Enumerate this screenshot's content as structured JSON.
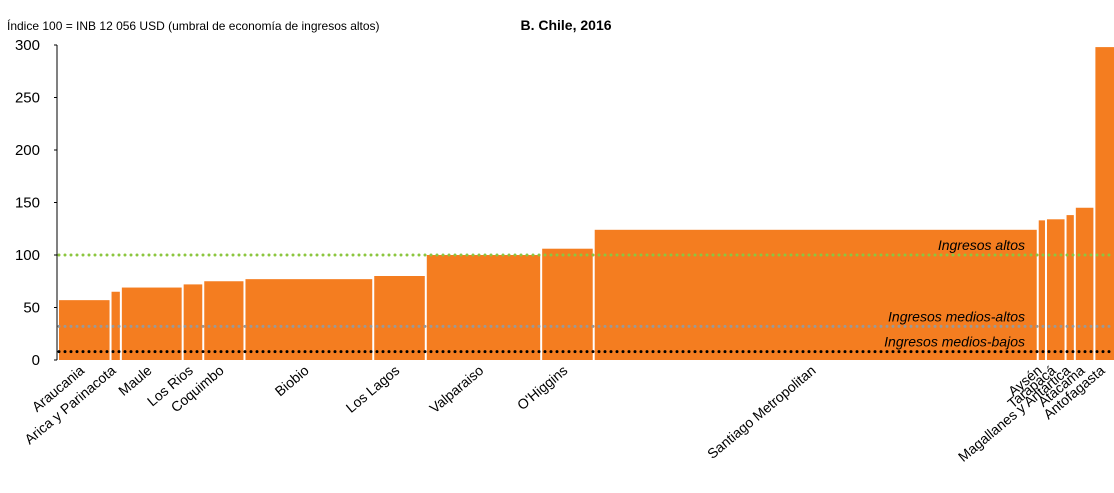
{
  "chart_data": {
    "type": "bar",
    "title": "B. Chile, 2016",
    "subtitle": "Índice 100 = INB 12 056 USD (umbral de economía de ingresos altos)",
    "categories": [
      "Araucania",
      "Arica y Parinacota",
      "Maule",
      "Los Rios",
      "Coquimbo",
      "Biobio",
      "Los Lagos",
      "Valparaiso",
      "O'Higgins",
      "Santiago Metropolitan",
      "Aysén",
      "Tarapacá",
      "Magallanes y Antártica",
      "Atacama",
      "Antofagasta"
    ],
    "values": [
      57,
      65,
      69,
      72,
      75,
      77,
      80,
      100,
      106,
      124,
      133,
      134,
      138,
      145,
      298
    ],
    "widths": [
      51,
      10,
      60,
      20,
      40,
      125,
      51,
      112,
      51,
      431,
      8,
      19,
      9,
      19,
      20
    ],
    "color": "#f47d20",
    "ylim": [
      0,
      300
    ],
    "yticks": [
      0,
      50,
      100,
      150,
      200,
      250,
      300
    ],
    "reference_lines": [
      {
        "label": "Ingresos altos",
        "value": 100,
        "color": "#8cc63f"
      },
      {
        "label": "Ingresos medios-altos",
        "value": 32,
        "color": "#999999"
      },
      {
        "label": "Ingresos medios-bajos",
        "value": 8,
        "color": "#000000"
      }
    ]
  }
}
